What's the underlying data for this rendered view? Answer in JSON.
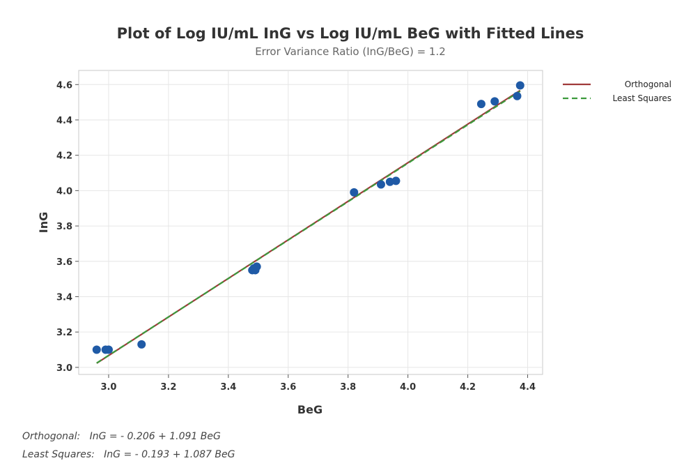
{
  "chart_data": {
    "type": "scatter",
    "title": "Plot of Log IU/mL InG vs Log IU/mL BeG with Fitted Lines",
    "subtitle": "Error Variance Ratio (InG/BeG) = 1.2",
    "xlabel": "BeG",
    "ylabel": "InG",
    "xlim": [
      2.9,
      4.45
    ],
    "ylim": [
      2.96,
      4.68
    ],
    "xticks": [
      3.0,
      3.2,
      3.4,
      3.6,
      3.8,
      4.0,
      4.2,
      4.4
    ],
    "xtick_labels": [
      "3.0",
      "3.2",
      "3.4",
      "3.6",
      "3.8",
      "4.0",
      "4.2",
      "4.4"
    ],
    "yticks": [
      3.0,
      3.2,
      3.4,
      3.6,
      3.8,
      4.0,
      4.2,
      4.4,
      4.6
    ],
    "ytick_labels": [
      "3.0",
      "3.2",
      "3.4",
      "3.6",
      "3.8",
      "4.0",
      "4.2",
      "4.4",
      "4.6"
    ],
    "grid": true,
    "legend_position": "top-right",
    "points": {
      "color": "#1f5aa6",
      "x": [
        2.96,
        2.99,
        3.0,
        3.11,
        3.48,
        3.485,
        3.49,
        3.495,
        3.82,
        3.91,
        3.94,
        3.96,
        4.245,
        4.29,
        4.365,
        4.375
      ],
      "y": [
        3.1,
        3.1,
        3.1,
        3.13,
        3.55,
        3.56,
        3.55,
        3.57,
        3.99,
        4.035,
        4.05,
        4.055,
        4.49,
        4.505,
        4.535,
        4.595
      ]
    },
    "lines": [
      {
        "name": "Orthogonal",
        "intercept": -0.206,
        "slope": 1.091,
        "color": "#a03a3a",
        "dash": "solid",
        "x_range": [
          2.96,
          4.375
        ]
      },
      {
        "name": "Least Squares",
        "intercept": -0.193,
        "slope": 1.087,
        "color": "#3c9a3c",
        "dash": "dashed",
        "x_range": [
          2.96,
          4.375
        ]
      }
    ],
    "equations": [
      "Orthogonal:   InG = - 0.206 + 1.091 BeG",
      "Least Squares:   InG = - 0.193 + 1.087 BeG"
    ]
  }
}
